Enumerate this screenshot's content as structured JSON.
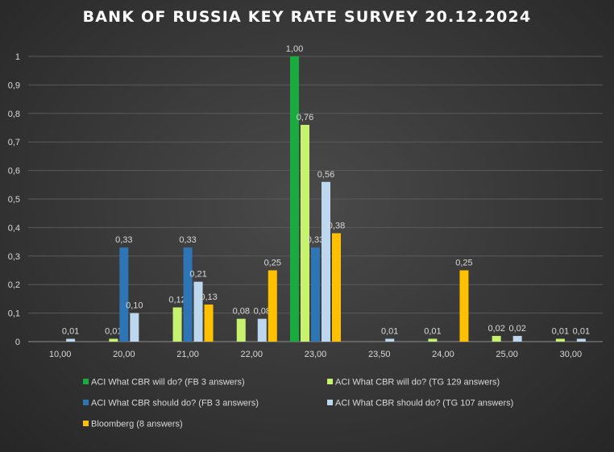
{
  "chart_data": {
    "type": "bar",
    "title": "BANK OF RUSSIA KEY RATE SURVEY 20.12.2024",
    "xlabel": "",
    "ylabel": "",
    "ylim": [
      0,
      1
    ],
    "y_ticks": [
      "0",
      "0,1",
      "0,2",
      "0,3",
      "0,4",
      "0,5",
      "0,6",
      "0,7",
      "0,8",
      "0,9",
      "1"
    ],
    "categories": [
      "10,00",
      "20,00",
      "21,00",
      "22,00",
      "23,00",
      "23,50",
      "24,00",
      "25,00",
      "30,00"
    ],
    "grid": true,
    "legend_position": "bottom",
    "series": [
      {
        "name": "ACI What CBR will do? (FB 3 answers)",
        "color": "#1aab40",
        "values": [
          0,
          0,
          0,
          0,
          1.0,
          0,
          0,
          0,
          0
        ],
        "labels": [
          "",
          "",
          "",
          "",
          "1,00",
          "",
          "",
          "",
          ""
        ]
      },
      {
        "name": "ACI What CBR will do? (TG 129 answers)",
        "color": "#c6f26e",
        "values": [
          0,
          0.01,
          0.12,
          0.08,
          0.76,
          0,
          0.01,
          0.02,
          0.01
        ],
        "labels": [
          "",
          "0,01",
          "0,12",
          "0,08",
          "0,76",
          "",
          "0,01",
          "0,02",
          "0,01"
        ]
      },
      {
        "name": "ACI What CBR should do? (FB 3 answers)",
        "color": "#2e75b6",
        "values": [
          0,
          0.33,
          0.33,
          0,
          0.33,
          0,
          0,
          0,
          0
        ],
        "labels": [
          "",
          "0,33",
          "0,33",
          "",
          "0,33",
          "",
          "",
          "",
          ""
        ]
      },
      {
        "name": "ACI What CBR should do? (TG 107 answers)",
        "color": "#bdd7ee",
        "values": [
          0.01,
          0.1,
          0.21,
          0.08,
          0.56,
          0.01,
          0,
          0.02,
          0.01
        ],
        "labels": [
          "0,01",
          "0,10",
          "0,21",
          "0,08",
          "0,56",
          "0,01",
          "",
          "0,02",
          "0,01"
        ]
      },
      {
        "name": "Bloomberg (8 answers)",
        "color": "#ffc000",
        "values": [
          0,
          0,
          0.13,
          0.25,
          0.38,
          0,
          0.25,
          0,
          0
        ],
        "labels": [
          "",
          "",
          "0,13",
          "0,25",
          "0,38",
          "",
          "0,25",
          "",
          ""
        ]
      }
    ]
  }
}
